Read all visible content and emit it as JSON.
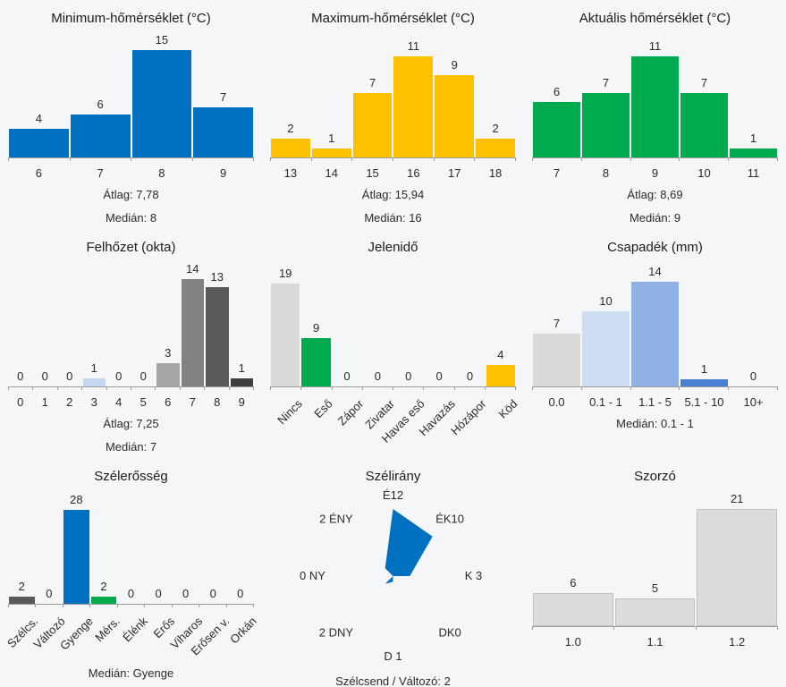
{
  "page": {
    "background": "#f5f6f8",
    "axis_color": "#9b9b9b"
  },
  "palette": {
    "blue": "#0071c0",
    "yellow": "#ffc000",
    "green": "#00ab50",
    "light_gray": "#d9d9d9"
  },
  "chart_data": [
    {
      "type": "bar",
      "title": "Minimum-hőmérséklet (°C)",
      "categories": [
        "6",
        "7",
        "8",
        "9"
      ],
      "values": [
        4,
        6,
        15,
        7
      ],
      "ymax": 15,
      "bar_colors": [
        "#0071c0",
        "#0071c0",
        "#0071c0",
        "#0071c0"
      ],
      "rotated_labels": false,
      "footers": [
        "Átlag: 7,78",
        "Medián: 8"
      ]
    },
    {
      "type": "bar",
      "title": "Maximum-hőmérséklet (°C)",
      "categories": [
        "13",
        "14",
        "15",
        "16",
        "17",
        "18"
      ],
      "values": [
        2,
        1,
        7,
        11,
        9,
        2
      ],
      "ymax": 11,
      "bar_colors": [
        "#ffc000",
        "#ffc000",
        "#ffc000",
        "#ffc000",
        "#ffc000",
        "#ffc000"
      ],
      "rotated_labels": false,
      "footers": [
        "Átlag: 15,94",
        "Medián: 16"
      ]
    },
    {
      "type": "bar",
      "title": "Aktuális hőmérséklet (°C)",
      "categories": [
        "7",
        "8",
        "9",
        "10",
        "11"
      ],
      "values": [
        6,
        7,
        11,
        7,
        1
      ],
      "ymax": 11,
      "bar_colors": [
        "#00ab50",
        "#00ab50",
        "#00ab50",
        "#00ab50",
        "#00ab50"
      ],
      "rotated_labels": false,
      "footers": [
        "Átlag: 8,69",
        "Medián: 9"
      ]
    },
    {
      "type": "bar",
      "title": "Felhőzet (okta)",
      "categories": [
        "0",
        "1",
        "2",
        "3",
        "4",
        "5",
        "6",
        "7",
        "8",
        "9"
      ],
      "values": [
        0,
        0,
        0,
        1,
        0,
        0,
        3,
        14,
        13,
        1
      ],
      "ymax": 14,
      "bar_colors": [
        "#d9d9d9",
        "#d9d9d9",
        "#d9d9d9",
        "#c5d7f0",
        "#d9d9d9",
        "#d9d9d9",
        "#a6a6a6",
        "#828282",
        "#595959",
        "#3f3f3f"
      ],
      "rotated_labels": false,
      "footers": [
        "Átlag: 7,25",
        "Medián: 7"
      ]
    },
    {
      "type": "bar",
      "title": "Jelenidő",
      "categories": [
        "Nincs",
        "Eső",
        "Zápor",
        "Zivatar",
        "Havas eső",
        "Havazás",
        "Hózápor",
        "Köd"
      ],
      "values": [
        19,
        9,
        0,
        0,
        0,
        0,
        0,
        4
      ],
      "ymax": 19,
      "bar_colors": [
        "#d9d9d9",
        "#00ab50",
        "#d9d9d9",
        "#d9d9d9",
        "#d9d9d9",
        "#d9d9d9",
        "#d9d9d9",
        "#ffc000"
      ],
      "rotated_labels": true,
      "footers": []
    },
    {
      "type": "bar",
      "title": "Csapadék (mm)",
      "categories": [
        "0.0",
        "0.1 - 1",
        "1.1 - 5",
        "5.1 - 10",
        "10+"
      ],
      "values": [
        7,
        10,
        14,
        1,
        0
      ],
      "ymax": 14,
      "bar_colors": [
        "#d9d9d9",
        "#cdddf2",
        "#8fb0e2",
        "#4a80d2",
        "#d9d9d9"
      ],
      "rotated_labels": false,
      "footers": [
        "Medián: 0.1 - 1"
      ]
    },
    {
      "type": "bar",
      "title": "Szélerősség",
      "categories": [
        "Szélcs.",
        "Változó",
        "Gyenge",
        "Mérs.",
        "Élénk",
        "Erős",
        "Viharos",
        "Erősen v.",
        "Orkán"
      ],
      "values": [
        2,
        0,
        28,
        2,
        0,
        0,
        0,
        0,
        0
      ],
      "ymax": 28,
      "bar_colors": [
        "#595959",
        "#d9d9d9",
        "#0071c0",
        "#00ab50",
        "#d9d9d9",
        "#d9d9d9",
        "#d9d9d9",
        "#d9d9d9",
        "#d9d9d9"
      ],
      "rotated_labels": true,
      "footers": [
        "Medián: Gyenge"
      ]
    },
    {
      "type": "radar",
      "title": "Szélirány",
      "dir_labels": [
        "É12",
        "ÉK10",
        "K 3",
        "DK0",
        "D 1",
        "2 DNY",
        "0 NY",
        "2 ÉNY"
      ],
      "values": [
        12,
        10,
        3,
        0,
        1,
        2,
        0,
        2
      ],
      "ymax": 12,
      "color": "#0071c0",
      "footers": [
        "Szélcsend / Változó: 2"
      ]
    },
    {
      "type": "bar",
      "title": "Szorzó",
      "categories": [
        "1.0",
        "1.1",
        "1.2"
      ],
      "values": [
        6,
        5,
        21
      ],
      "ymax": 21,
      "bar_colors": [
        "#dcdcdc",
        "#dcdcdc",
        "#dcdcdc"
      ],
      "border_color": "#c0c0c0",
      "rotated_labels": false,
      "footers": []
    }
  ]
}
